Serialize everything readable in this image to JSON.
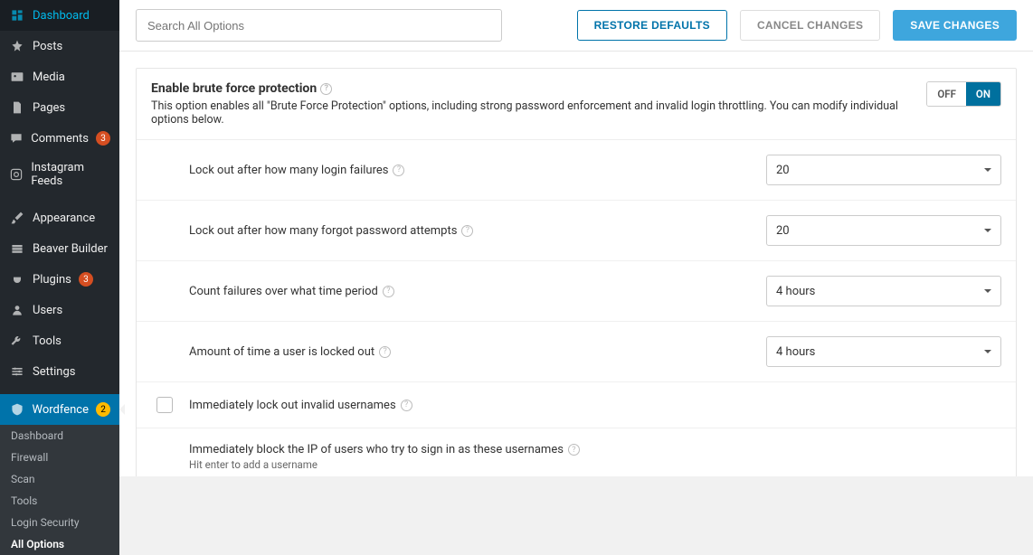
{
  "sidebar": {
    "items": [
      {
        "label": "Dashboard",
        "icon": "dashboard"
      },
      {
        "label": "Posts",
        "icon": "pin"
      },
      {
        "label": "Media",
        "icon": "media"
      },
      {
        "label": "Pages",
        "icon": "page"
      },
      {
        "label": "Comments",
        "icon": "comment",
        "badge": "3",
        "badgeColor": "#d54e21"
      },
      {
        "label": "Instagram Feeds",
        "icon": "instagram"
      },
      {
        "label": "Appearance",
        "icon": "brush"
      },
      {
        "label": "Beaver Builder",
        "icon": "beaver"
      },
      {
        "label": "Plugins",
        "icon": "plug",
        "badge": "3",
        "badgeColor": "#d54e21"
      },
      {
        "label": "Users",
        "icon": "user"
      },
      {
        "label": "Tools",
        "icon": "wrench"
      },
      {
        "label": "Settings",
        "icon": "sliders"
      },
      {
        "label": "Wordfence",
        "icon": "shield",
        "badge": "2",
        "badgeColor": "#ffba00",
        "current": true
      }
    ],
    "submenu": [
      "Dashboard",
      "Firewall",
      "Scan",
      "Tools",
      "Login Security",
      "All Options"
    ],
    "submenuActive": "All Options"
  },
  "topbar": {
    "searchPlaceholder": "Search All Options",
    "restore": "RESTORE DEFAULTS",
    "cancel": "CANCEL CHANGES",
    "save": "SAVE CHANGES"
  },
  "panel": {
    "title": "Enable brute force protection",
    "desc": "This option enables all \"Brute Force Protection\" options, including strong password enforcement and invalid login throttling. You can modify individual options below.",
    "toggle": {
      "off": "OFF",
      "on": "ON",
      "value": "on"
    }
  },
  "rows": [
    {
      "label": "Lock out after how many login failures",
      "value": "20",
      "type": "select"
    },
    {
      "label": "Lock out after how many forgot password attempts",
      "value": "20",
      "type": "select"
    },
    {
      "label": "Count failures over what time period",
      "value": "4 hours",
      "type": "select"
    },
    {
      "label": "Amount of time a user is locked out",
      "value": "4 hours",
      "type": "select"
    },
    {
      "label": "Immediately lock out invalid usernames",
      "type": "checkbox",
      "checked": false
    },
    {
      "label": "Immediately block the IP of users who try to sign in as these usernames",
      "hint": "Hit enter to add a username",
      "type": "textarea"
    }
  ],
  "colors": {
    "accent": "#0073aa",
    "primaryBtn": "#3ea6dd",
    "sidebar": "#23282d",
    "badgeRed": "#d54e21",
    "badgeYellow": "#ffba00"
  }
}
